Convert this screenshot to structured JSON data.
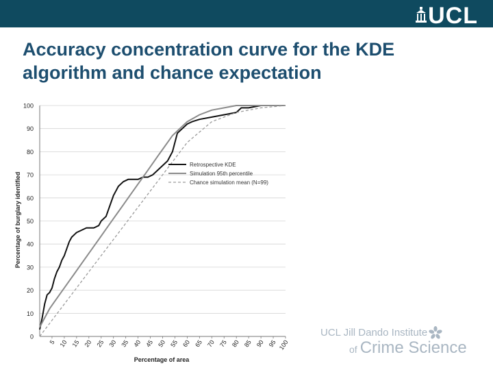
{
  "header": {
    "logo_text": "UCL",
    "bar_color": "#0f4a5f"
  },
  "slide": {
    "title": "Accuracy concentration curve for the KDE algorithm and chance expectation"
  },
  "institute": {
    "line1": "UCL Jill Dando Institute",
    "line2_prefix": "of",
    "line2_main": "Crime Science",
    "text_color": "#a9b6c2"
  },
  "chart_data": {
    "type": "line",
    "xlabel": "Percentage of area",
    "ylabel": "Percentage of burglary identified",
    "xlim": [
      0,
      100
    ],
    "ylim": [
      0,
      100
    ],
    "x_ticks": [
      5,
      10,
      15,
      20,
      25,
      30,
      35,
      40,
      45,
      50,
      55,
      60,
      65,
      70,
      75,
      80,
      85,
      90,
      95,
      100
    ],
    "y_ticks": [
      0,
      10,
      20,
      30,
      40,
      50,
      60,
      70,
      80,
      90,
      100
    ],
    "grid": true,
    "legend_position": "center-right",
    "series": [
      {
        "name": "Retrospective KDE",
        "color": "#111111",
        "style": "solid",
        "x": [
          0,
          1,
          2,
          3,
          4,
          5,
          6,
          7,
          8,
          9,
          10,
          11,
          12,
          13,
          14,
          15,
          17,
          19,
          20,
          22,
          24,
          25,
          27,
          29,
          30,
          31,
          32,
          34,
          36,
          38,
          40,
          42,
          44,
          46,
          48,
          50,
          52,
          54,
          56,
          58,
          60,
          62,
          65,
          70,
          75,
          80,
          82,
          85,
          90,
          95,
          100
        ],
        "y": [
          3,
          8,
          14,
          18,
          19,
          21,
          25,
          28,
          30,
          33,
          35,
          38,
          41,
          43,
          44,
          45,
          46,
          47,
          47,
          47,
          48,
          50,
          52,
          58,
          61,
          63,
          65,
          67,
          68,
          68,
          68,
          69,
          69,
          70,
          72,
          74,
          76,
          80,
          88,
          90,
          92,
          93,
          94,
          95,
          96,
          97,
          99,
          99,
          100,
          100,
          100
        ]
      },
      {
        "name": "Simulation 95th percentile",
        "color": "#8a8a8a",
        "style": "solid",
        "x": [
          0,
          2,
          4,
          6,
          8,
          10,
          12,
          14,
          16,
          18,
          20,
          22,
          24,
          26,
          28,
          30,
          32,
          34,
          36,
          38,
          40,
          42,
          44,
          46,
          48,
          50,
          52,
          54,
          56,
          58,
          60,
          65,
          70,
          75,
          80,
          85,
          90,
          95,
          100
        ],
        "y": [
          4,
          8,
          12,
          15,
          18,
          21,
          24,
          27,
          30,
          33,
          36,
          39,
          42,
          45,
          48,
          51,
          54,
          57,
          60,
          63,
          66,
          69,
          72,
          75,
          78,
          81,
          84,
          87,
          89,
          91,
          93,
          96,
          98,
          99,
          100,
          100,
          100,
          100,
          100
        ]
      },
      {
        "name": "Chance simulation mean (N=99)",
        "color": "#9a9a9a",
        "style": "dashed",
        "x": [
          0,
          10,
          20,
          30,
          40,
          50,
          60,
          70,
          80,
          90,
          100
        ],
        "y": [
          0,
          14,
          28,
          42,
          56,
          70,
          84,
          93,
          97,
          99,
          100
        ]
      }
    ]
  }
}
